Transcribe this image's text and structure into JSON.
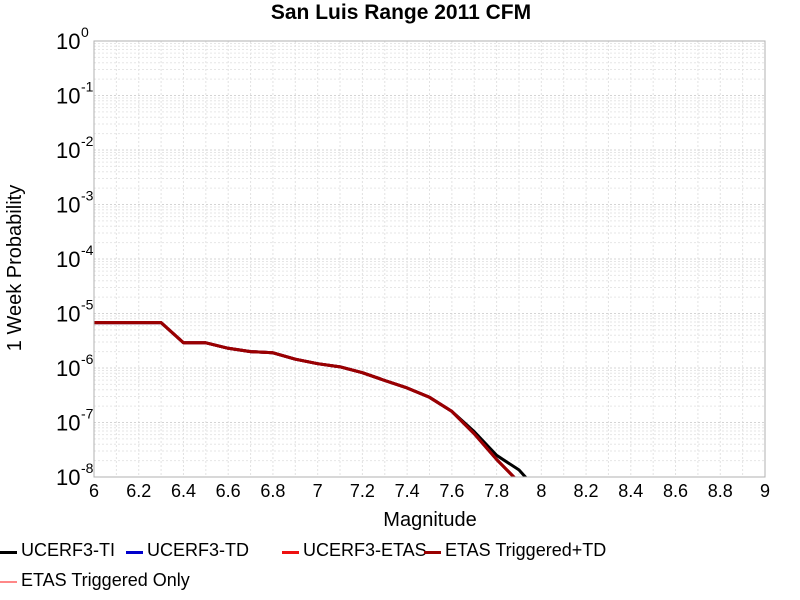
{
  "chart_data": {
    "type": "line",
    "title": "San Luis Range 2011 CFM",
    "xlabel": "Magnitude",
    "ylabel": "1 Week Probability",
    "xlim": [
      6,
      9
    ],
    "ylim": [
      1e-08,
      1
    ],
    "yscale": "log",
    "grid": true,
    "legend_placement": "bottom",
    "x_ticks": [
      "6",
      "6.2",
      "6.4",
      "6.6",
      "6.8",
      "7",
      "7.2",
      "7.4",
      "7.6",
      "7.8",
      "8",
      "8.2",
      "8.4",
      "8.6",
      "8.8",
      "9"
    ],
    "y_ticks": [
      {
        "base": "10",
        "exp": "0"
      },
      {
        "base": "10",
        "exp": "-1"
      },
      {
        "base": "10",
        "exp": "-2"
      },
      {
        "base": "10",
        "exp": "-3"
      },
      {
        "base": "10",
        "exp": "-4"
      },
      {
        "base": "10",
        "exp": "-5"
      },
      {
        "base": "10",
        "exp": "-6"
      },
      {
        "base": "10",
        "exp": "-7"
      },
      {
        "base": "10",
        "exp": "-8"
      }
    ],
    "series": [
      {
        "name": "UCERF3-TI",
        "color": "#000000",
        "x": [
          6.0,
          6.3,
          6.4,
          6.5,
          6.6,
          6.7,
          6.8,
          6.9,
          7.0,
          7.1,
          7.2,
          7.3,
          7.4,
          7.5,
          7.6,
          7.7,
          7.8,
          7.9,
          7.95
        ],
        "y": [
          6.8e-06,
          6.8e-06,
          2.9e-06,
          2.9e-06,
          2.3e-06,
          2e-06,
          1.9e-06,
          1.45e-06,
          1.2e-06,
          1.05e-06,
          8.2e-07,
          5.9e-07,
          4.3e-07,
          2.9e-07,
          1.6e-07,
          6.8e-08,
          2.5e-08,
          1.35e-08,
          8e-09
        ]
      },
      {
        "name": "UCERF3-TD",
        "color": "#0000cc",
        "x": [
          6.0,
          6.3,
          6.4,
          6.5,
          6.6,
          6.7,
          6.8,
          6.9,
          7.0,
          7.1,
          7.2,
          7.3,
          7.4,
          7.5,
          7.6,
          7.7,
          7.8,
          7.9
        ],
        "y": [
          6.8e-06,
          6.8e-06,
          2.9e-06,
          2.9e-06,
          2.3e-06,
          2e-06,
          1.9e-06,
          1.45e-06,
          1.2e-06,
          1.05e-06,
          8.2e-07,
          5.9e-07,
          4.3e-07,
          2.9e-07,
          1.6e-07,
          6.2e-08,
          2.1e-08,
          8e-09
        ]
      },
      {
        "name": "UCERF3-ETAS",
        "color": "#ee1111",
        "x": [
          6.0,
          6.3,
          6.4,
          6.5,
          6.6,
          6.7,
          6.8,
          6.9,
          7.0,
          7.1,
          7.2,
          7.3,
          7.4,
          7.5,
          7.6,
          7.7,
          7.8,
          7.9
        ],
        "y": [
          6.8e-06,
          6.8e-06,
          2.9e-06,
          2.9e-06,
          2.3e-06,
          2e-06,
          1.9e-06,
          1.45e-06,
          1.2e-06,
          1.05e-06,
          8.2e-07,
          5.9e-07,
          4.3e-07,
          2.9e-07,
          1.6e-07,
          6.2e-08,
          2.1e-08,
          8e-09
        ]
      },
      {
        "name": "ETAS Triggered+TD",
        "color": "#990000",
        "x": [
          6.0,
          6.3,
          6.4,
          6.5,
          6.6,
          6.7,
          6.8,
          6.9,
          7.0,
          7.1,
          7.2,
          7.3,
          7.4,
          7.5,
          7.6,
          7.7,
          7.8,
          7.9
        ],
        "y": [
          6.8e-06,
          6.8e-06,
          2.9e-06,
          2.9e-06,
          2.3e-06,
          2e-06,
          1.9e-06,
          1.45e-06,
          1.2e-06,
          1.05e-06,
          8.2e-07,
          5.9e-07,
          4.3e-07,
          2.9e-07,
          1.6e-07,
          6.2e-08,
          2.1e-08,
          8e-09
        ]
      },
      {
        "name": "ETAS Triggered Only",
        "color": "#ff8888",
        "x": [],
        "y": []
      }
    ]
  }
}
